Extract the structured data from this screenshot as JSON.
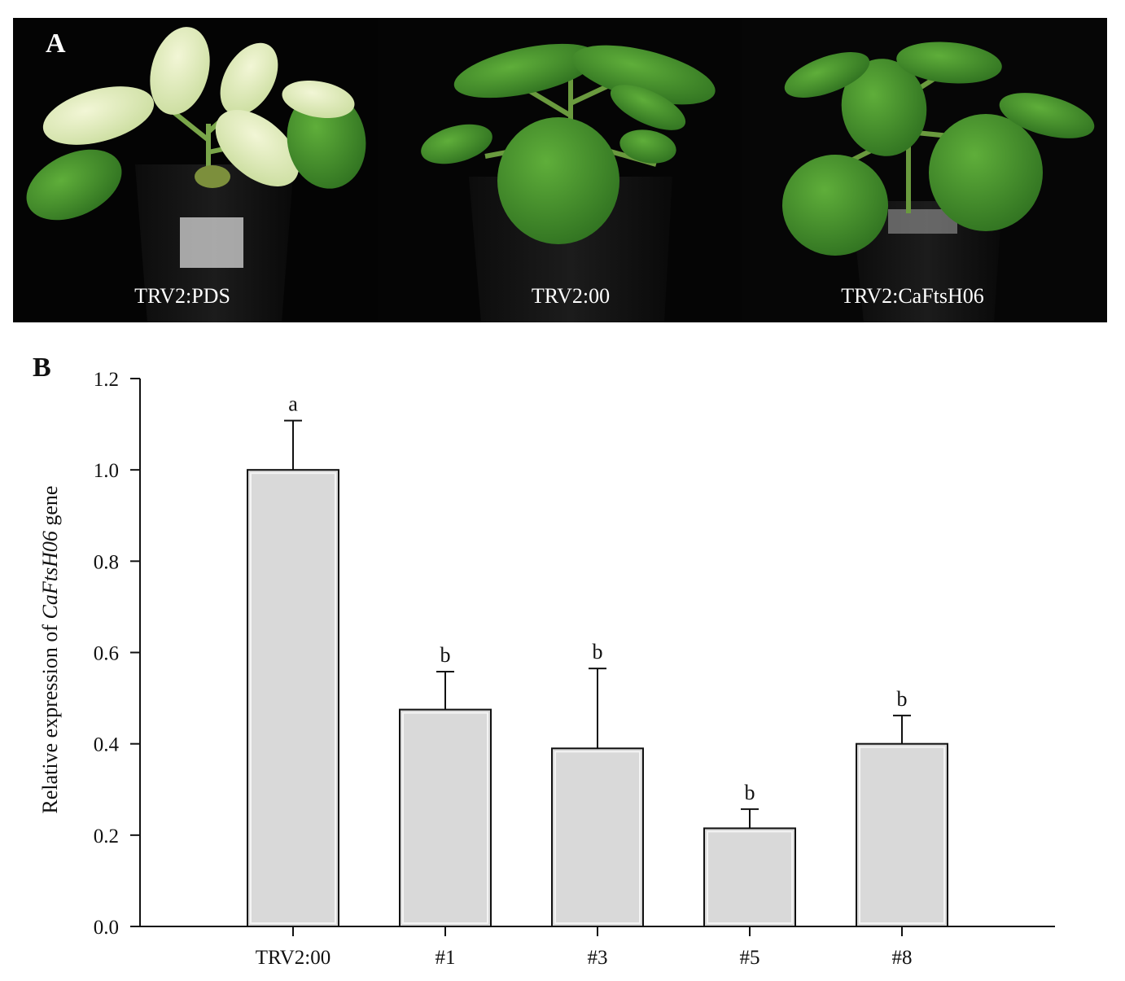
{
  "figure": {
    "panel_a": {
      "letter": "A",
      "photos": [
        {
          "label": "TRV2:PDS"
        },
        {
          "label": "TRV2:00"
        },
        {
          "label": "TRV2:CaFtsH06"
        }
      ]
    },
    "panel_b": {
      "letter": "B"
    }
  },
  "chart_data": {
    "type": "bar",
    "categories": [
      "TRV2:00",
      "#1",
      "#3",
      "#5",
      "#8"
    ],
    "values": [
      1.0,
      0.475,
      0.39,
      0.215,
      0.4
    ],
    "error_upper": [
      0.108,
      0.083,
      0.175,
      0.042,
      0.062
    ],
    "significance": [
      "a",
      "b",
      "b",
      "b",
      "b"
    ],
    "ylabel_prefix": "Relative expression of ",
    "ylabel_gene": "CaFtsH06",
    "ylabel_suffix": " gene",
    "xlabel": "",
    "ylim": [
      0,
      1.2
    ],
    "yticks": [
      "0.0",
      "0.2",
      "0.4",
      "0.6",
      "0.8",
      "1.0",
      "1.2"
    ],
    "grid": false,
    "colors": {
      "bar_fill": "#d9d9d9",
      "bar_edge": "#111111"
    }
  }
}
